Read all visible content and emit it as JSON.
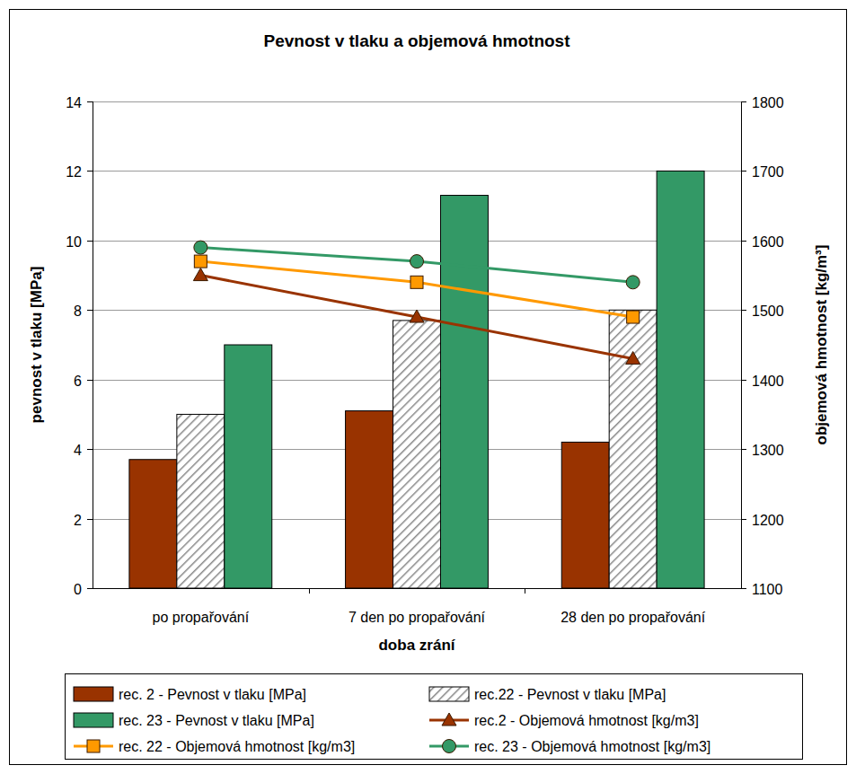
{
  "chart_data": {
    "type": "bar",
    "title": "Pevnost v tlaku a objemová hmotnost",
    "xlabel": "doba zrání",
    "ylabel": "pevnost v tlaku [MPa]",
    "y2label": "objemová hmotnost [kg/m³]",
    "categories": [
      "po propařování",
      "7 den po propařování",
      "28 den po propařování"
    ],
    "ylim": [
      0,
      14
    ],
    "yticks": [
      0,
      2,
      4,
      6,
      8,
      10,
      12,
      14
    ],
    "y2lim": [
      1100,
      1800
    ],
    "y2ticks": [
      1100,
      1200,
      1300,
      1400,
      1500,
      1600,
      1700,
      1800
    ],
    "grid": true,
    "legend": "bottom",
    "series": [
      {
        "name": "rec. 2 - Pevnost v tlaku [MPa]",
        "type": "bar",
        "color": "#993300",
        "values": [
          3.7,
          5.1,
          4.2
        ]
      },
      {
        "name": "rec.22 - Pevnost v tlaku [MPa]",
        "type": "bar",
        "color": "#ffffff",
        "line_style": "hatched",
        "values": [
          5.0,
          7.7,
          8.0
        ]
      },
      {
        "name": "rec. 23 - Pevnost v tlaku [MPa]",
        "type": "bar",
        "color": "#339966",
        "values": [
          7.0,
          11.3,
          12.0
        ]
      },
      {
        "name": "rec.2 - Objemová hmotnost [kg/m3]",
        "type": "line",
        "axis": "y2",
        "color": "#993300",
        "marker": "triangle",
        "values": [
          1550,
          1490,
          1430
        ]
      },
      {
        "name": "rec. 22 - Objemová hmotnost [kg/m3]",
        "type": "line",
        "axis": "y2",
        "color": "#ff9900",
        "marker": "square",
        "values": [
          1570,
          1540,
          1490
        ]
      },
      {
        "name": "rec. 23 - Objemová hmotnost [kg/m3]",
        "type": "line",
        "axis": "y2",
        "color": "#339966",
        "marker": "circle",
        "values": [
          1590,
          1570,
          1540
        ]
      }
    ]
  }
}
